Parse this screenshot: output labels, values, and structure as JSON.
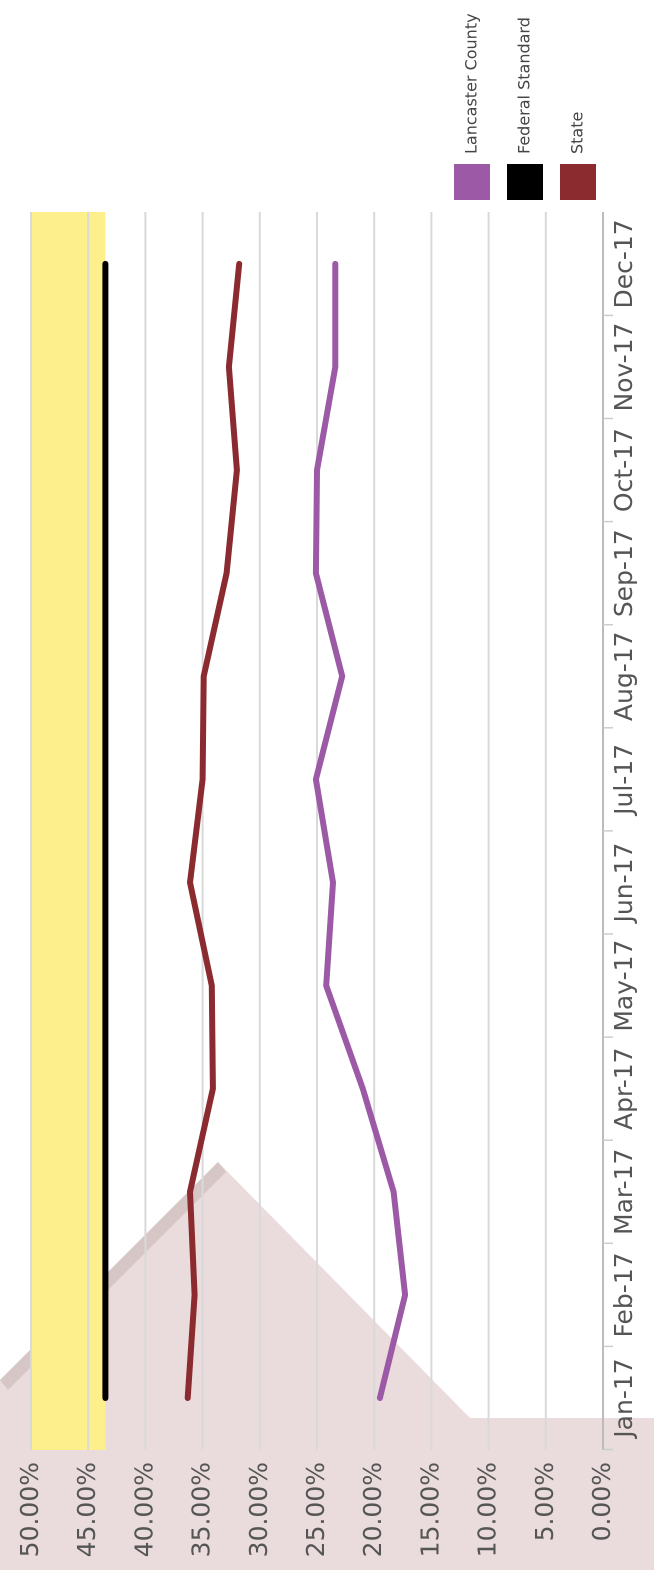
{
  "chart_data": {
    "type": "line",
    "orientation": "rotated-90-clockwise",
    "categories": [
      "Jan-17",
      "Feb-17",
      "Mar-17",
      "Apr-17",
      "May-17",
      "Jun-17",
      "Jul-17",
      "Aug-17",
      "Sep-17",
      "Oct-17",
      "Nov-17",
      "Dec-17"
    ],
    "y_ticks": [
      "0.00%",
      "5.00%",
      "10.00%",
      "15.00%",
      "20.00%",
      "25.00%",
      "30.00%",
      "35.00%",
      "40.00%",
      "45.00%",
      "50.00%"
    ],
    "ylim": [
      0,
      50
    ],
    "grid": true,
    "legend_position": "top",
    "highlight_band": {
      "from": 43.5,
      "to": 50,
      "color": "#fdf08c"
    },
    "series": [
      {
        "name": "Lancaster County",
        "color": "#9b59a6",
        "values": [
          19.5,
          17.3,
          18.3,
          21.0,
          24.2,
          23.6,
          25.1,
          22.8,
          25.1,
          25.0,
          23.4,
          23.4
        ]
      },
      {
        "name": "Federal Standard",
        "color": "#000000",
        "values": [
          43.5,
          43.5,
          43.5,
          43.5,
          43.5,
          43.5,
          43.5,
          43.5,
          43.5,
          43.5,
          43.5,
          43.5
        ]
      },
      {
        "name": "State",
        "color": "#8b2a2f",
        "values": [
          36.3,
          35.7,
          36.1,
          34.1,
          34.2,
          36.1,
          35.0,
          34.9,
          32.9,
          32.0,
          32.7,
          31.8
        ]
      }
    ]
  }
}
